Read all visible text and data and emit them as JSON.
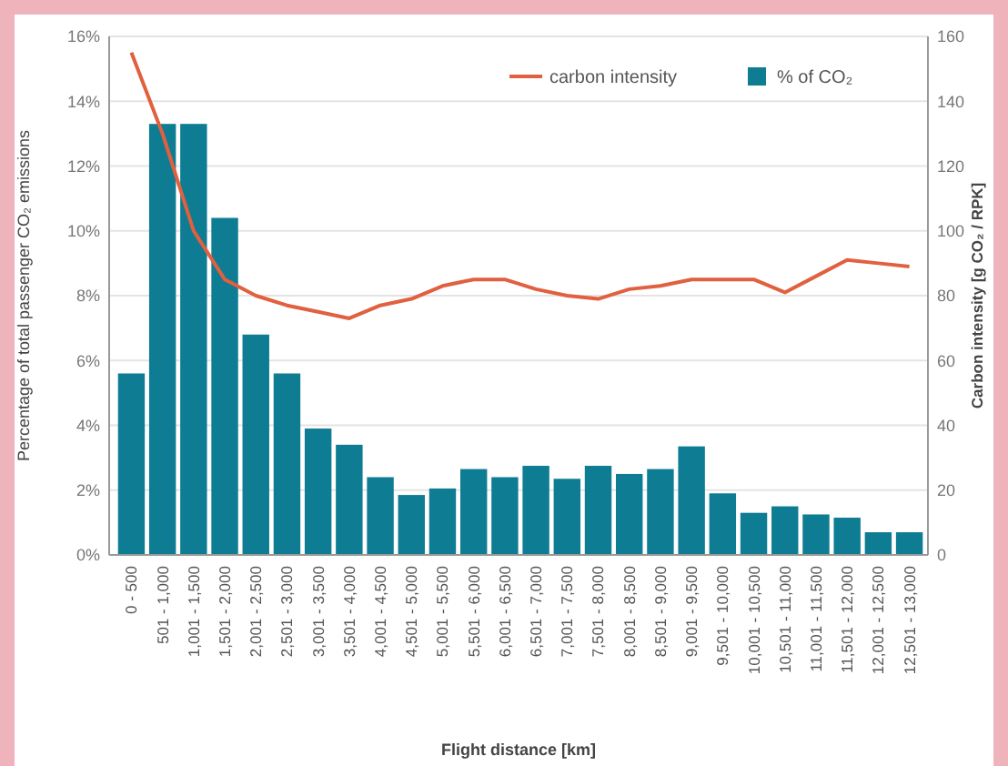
{
  "chart_data": {
    "type": "bar",
    "xlabel": "Flight distance [km]",
    "ylabel": "Percentage of total passenger CO₂ emissions",
    "y2label": "Carbon intensity [g CO₂ / RPK]",
    "categories": [
      "0 - 500",
      "501 - 1,000",
      "1,001 - 1,500",
      "1,501 - 2,000",
      "2,001 - 2,500",
      "2,501 - 3,000",
      "3,001 - 3,500",
      "3,501 - 4,000",
      "4,001 - 4,500",
      "4,501 - 5,000",
      "5,001 - 5,500",
      "5,501 - 6,000",
      "6,001 - 6,500",
      "6,501 - 7,000",
      "7,001 - 7,500",
      "7,501 - 8,000",
      "8,001 - 8,500",
      "8,501 - 9,000",
      "9,001 - 9,500",
      "9,501 - 10,000",
      "10,001 - 10,500",
      "10,501 - 11,000",
      "11,001 - 11,500",
      "11,501 - 12,000",
      "12,001 - 12,500",
      "12,501 - 13,000"
    ],
    "series": [
      {
        "name": "carbon intensity",
        "type": "line",
        "axis": "y2",
        "color": "#e0603f",
        "values": [
          155,
          130,
          100,
          85,
          80,
          77,
          75,
          73,
          77,
          79,
          83,
          85,
          85,
          82,
          80,
          79,
          82,
          83,
          85,
          85,
          85,
          81,
          86,
          91,
          90,
          89
        ]
      },
      {
        "name": "% of CO₂",
        "color": "#0e7c93",
        "values": [
          5.6,
          13.3,
          13.3,
          10.4,
          6.8,
          5.6,
          3.9,
          3.4,
          2.4,
          1.85,
          2.05,
          2.65,
          2.4,
          2.75,
          2.35,
          2.75,
          2.5,
          2.65,
          3.35,
          1.9,
          1.3,
          1.5,
          1.25,
          1.15,
          0.7,
          0.7
        ]
      }
    ],
    "ylim": [
      0,
      16
    ],
    "yticks": [
      {
        "value": 0,
        "label": "0%"
      },
      {
        "value": 2,
        "label": "2%"
      },
      {
        "value": 4,
        "label": "4%"
      },
      {
        "value": 6,
        "label": "6%"
      },
      {
        "value": 8,
        "label": "8%"
      },
      {
        "value": 10,
        "label": "10%"
      },
      {
        "value": 12,
        "label": "12%"
      },
      {
        "value": 14,
        "label": "14%"
      },
      {
        "value": 16,
        "label": "16%"
      }
    ],
    "y2lim": [
      0,
      160
    ],
    "y2ticks": [
      0,
      20,
      40,
      60,
      80,
      100,
      120,
      140,
      160
    ],
    "grid": "y",
    "legend": "top right",
    "marker": "none",
    "line_style": "solid"
  }
}
